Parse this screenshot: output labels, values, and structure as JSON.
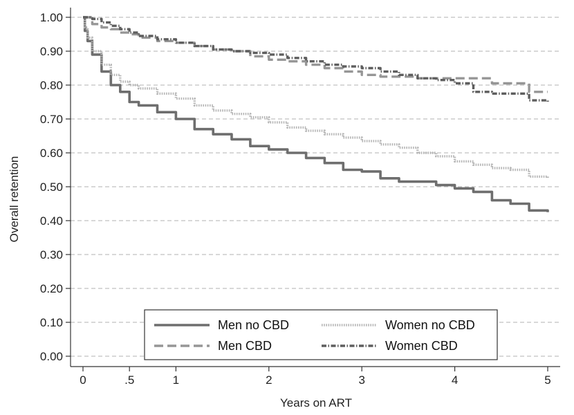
{
  "chart_data": {
    "type": "line",
    "xlabel": "Years on ART",
    "ylabel": "Overall retention",
    "xlim": [
      0,
      5
    ],
    "ylim": [
      0,
      1
    ],
    "x_ticks": [
      {
        "value": 0,
        "label": "0"
      },
      {
        "value": 0.5,
        "label": ".5"
      },
      {
        "value": 1,
        "label": "1"
      },
      {
        "value": 2,
        "label": "2"
      },
      {
        "value": 3,
        "label": "3"
      },
      {
        "value": 4,
        "label": "4"
      },
      {
        "value": 5,
        "label": "5"
      }
    ],
    "y_ticks": [
      {
        "value": 0.0,
        "label": "0.00"
      },
      {
        "value": 0.1,
        "label": "0.10"
      },
      {
        "value": 0.2,
        "label": "0.20"
      },
      {
        "value": 0.3,
        "label": "0.30"
      },
      {
        "value": 0.4,
        "label": "0.40"
      },
      {
        "value": 0.5,
        "label": "0.50"
      },
      {
        "value": 0.6,
        "label": "0.60"
      },
      {
        "value": 0.7,
        "label": "0.70"
      },
      {
        "value": 0.8,
        "label": "0.80"
      },
      {
        "value": 0.9,
        "label": "0.90"
      },
      {
        "value": 1.0,
        "label": "1.00"
      }
    ],
    "grid": "horizontal dashed",
    "legend_position": "bottom-center",
    "series": [
      {
        "name": "Men no CBD",
        "color": "#6e6e6e",
        "style": "solid",
        "x": [
          0,
          0.02,
          0.05,
          0.1,
          0.2,
          0.3,
          0.4,
          0.5,
          0.6,
          0.8,
          1.0,
          1.2,
          1.4,
          1.6,
          1.8,
          2.0,
          2.2,
          2.4,
          2.6,
          2.8,
          3.0,
          3.2,
          3.4,
          3.6,
          3.8,
          4.0,
          4.2,
          4.4,
          4.6,
          4.8,
          5.0
        ],
        "y": [
          1.0,
          0.96,
          0.93,
          0.89,
          0.84,
          0.8,
          0.78,
          0.75,
          0.74,
          0.72,
          0.7,
          0.67,
          0.655,
          0.64,
          0.62,
          0.61,
          0.6,
          0.585,
          0.57,
          0.55,
          0.545,
          0.525,
          0.515,
          0.515,
          0.505,
          0.495,
          0.485,
          0.46,
          0.45,
          0.43,
          0.425
        ]
      },
      {
        "name": "Women no CBD",
        "color": "#b5b5b5",
        "style": "dotted",
        "x": [
          0,
          0.02,
          0.05,
          0.1,
          0.2,
          0.3,
          0.4,
          0.5,
          0.6,
          0.8,
          1.0,
          1.2,
          1.4,
          1.6,
          1.8,
          2.0,
          2.2,
          2.4,
          2.6,
          2.8,
          3.0,
          3.2,
          3.4,
          3.6,
          3.8,
          4.0,
          4.2,
          4.4,
          4.6,
          4.8,
          5.0
        ],
        "y": [
          1.0,
          0.97,
          0.94,
          0.9,
          0.86,
          0.83,
          0.81,
          0.8,
          0.79,
          0.775,
          0.76,
          0.74,
          0.725,
          0.715,
          0.705,
          0.69,
          0.675,
          0.665,
          0.655,
          0.645,
          0.635,
          0.625,
          0.615,
          0.6,
          0.59,
          0.575,
          0.565,
          0.555,
          0.55,
          0.53,
          0.525
        ]
      },
      {
        "name": "Men CBD",
        "color": "#969696",
        "style": "dashed",
        "x": [
          0,
          0.1,
          0.2,
          0.3,
          0.4,
          0.5,
          0.6,
          0.8,
          1.0,
          1.2,
          1.4,
          1.6,
          1.8,
          2.0,
          2.2,
          2.4,
          2.6,
          2.8,
          3.0,
          3.2,
          3.4,
          3.6,
          3.8,
          4.0,
          4.2,
          4.4,
          4.6,
          4.8,
          5.0
        ],
        "y": [
          1.0,
          0.98,
          0.97,
          0.965,
          0.955,
          0.95,
          0.94,
          0.93,
          0.925,
          0.915,
          0.905,
          0.9,
          0.885,
          0.875,
          0.87,
          0.86,
          0.85,
          0.84,
          0.83,
          0.825,
          0.825,
          0.82,
          0.82,
          0.82,
          0.82,
          0.805,
          0.805,
          0.78,
          0.78
        ]
      },
      {
        "name": "Women CBD",
        "color": "#5e5e5e",
        "style": "dash-dot",
        "x": [
          0,
          0.1,
          0.2,
          0.3,
          0.4,
          0.5,
          0.6,
          0.8,
          1.0,
          1.2,
          1.4,
          1.6,
          1.8,
          2.0,
          2.2,
          2.4,
          2.6,
          2.8,
          3.0,
          3.2,
          3.4,
          3.6,
          3.8,
          4.0,
          4.2,
          4.4,
          4.6,
          4.8,
          5.0
        ],
        "y": [
          1.0,
          0.995,
          0.985,
          0.975,
          0.965,
          0.955,
          0.945,
          0.935,
          0.925,
          0.915,
          0.905,
          0.9,
          0.895,
          0.89,
          0.88,
          0.87,
          0.86,
          0.855,
          0.85,
          0.84,
          0.83,
          0.82,
          0.815,
          0.805,
          0.78,
          0.775,
          0.775,
          0.755,
          0.75
        ]
      }
    ]
  }
}
